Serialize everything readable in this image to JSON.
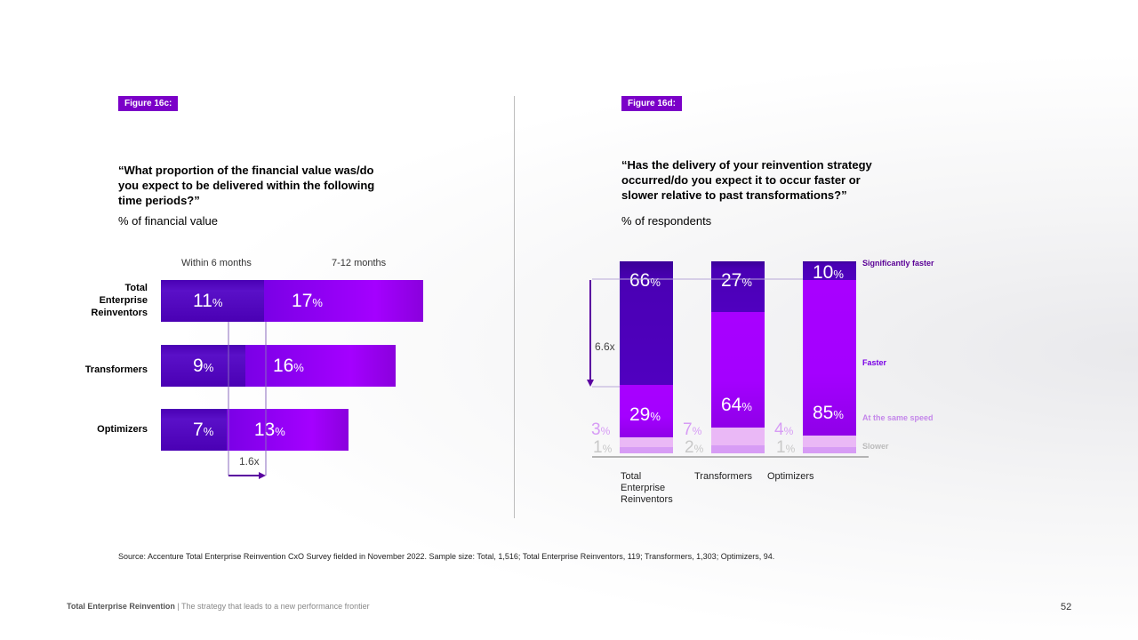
{
  "left": {
    "badge": "Figure 16c:",
    "question": "“What proportion of the financial value was/do you expect to be delivered within the following time periods?”",
    "subtitle": "% of financial value",
    "col_heads": [
      "Within 6 months",
      "7-12 months"
    ],
    "multiplier": "1.6x"
  },
  "right": {
    "badge": "Figure 16d:",
    "question": "“Has the delivery of your reinvention strategy occurred/do you expect it to occur faster or slower relative to past transformations?”",
    "subtitle": "% of respondents",
    "multiplier": "6.6x",
    "legend": [
      "Significantly faster",
      "Faster",
      "At the same speed",
      "Slower"
    ]
  },
  "source": "Source: Accenture Total Enterprise Reinvention CxO Survey fielded in November 2022. Sample size: Total, 1,516; Total Enterprise Reinventors, 119; Transformers, 1,303; Optimizers, 94.",
  "footer": {
    "title": "Total Enterprise Reinvention",
    "tagline": "| The strategy that leads to a new performance frontier",
    "page": "52"
  },
  "colors": {
    "dark_purple": "#4a00b4",
    "purple": "#7a00e6",
    "magenta": "#a400ff",
    "light_purple": "#d79cf5",
    "pale_purple": "#eab8f6",
    "badge": "#7b00c8"
  },
  "chart_data": [
    {
      "type": "bar",
      "orientation": "horizontal",
      "stacked": true,
      "categories": [
        "Total Enterprise Reinventors",
        "Transformers",
        "Optimizers"
      ],
      "series": [
        {
          "name": "Within 6 months",
          "values": [
            11,
            9,
            7
          ]
        },
        {
          "name": "7-12 months",
          "values": [
            17,
            16,
            13
          ]
        }
      ],
      "unit": "%"
    },
    {
      "type": "bar",
      "orientation": "vertical",
      "stacked": true,
      "categories": [
        "Total Enterprise Reinventors",
        "Transformers",
        "Optimizers"
      ],
      "series": [
        {
          "name": "Significantly faster",
          "values": [
            66,
            27,
            10
          ]
        },
        {
          "name": "Faster",
          "values": [
            29,
            64,
            85
          ]
        },
        {
          "name": "At the same speed",
          "values": [
            3,
            7,
            4
          ]
        },
        {
          "name": "Slower",
          "values": [
            1,
            2,
            1
          ]
        }
      ],
      "unit": "%"
    }
  ]
}
